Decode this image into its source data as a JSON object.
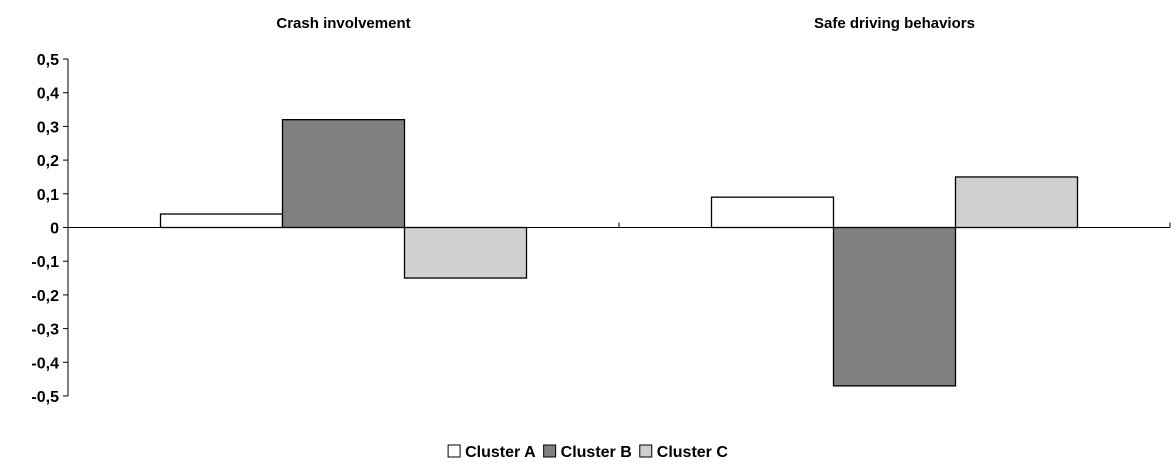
{
  "chart_data": {
    "type": "bar",
    "categories": [
      "Crash involvement",
      "Safe driving behaviors"
    ],
    "series": [
      {
        "name": "Cluster A",
        "values": [
          0.04,
          0.09
        ],
        "color": "#ffffff"
      },
      {
        "name": "Cluster B",
        "values": [
          0.32,
          -0.47
        ],
        "color": "#808080"
      },
      {
        "name": "Cluster C",
        "values": [
          -0.15,
          0.15
        ],
        "color": "#d0d0d0"
      }
    ],
    "ylim": [
      -0.5,
      0.5
    ],
    "yticks": [
      0.5,
      0.4,
      0.3,
      0.2,
      0.1,
      0,
      -0.1,
      -0.2,
      -0.3,
      -0.4,
      -0.5
    ],
    "ytick_labels": [
      "0,5",
      "0,4",
      "0,3",
      "0,2",
      "0,1",
      "0",
      "-0,1",
      "-0,2",
      "-0,3",
      "-0,4",
      "-0,5"
    ],
    "grid": false,
    "legend_position": "bottom",
    "bar_outline_color": "#000000"
  }
}
